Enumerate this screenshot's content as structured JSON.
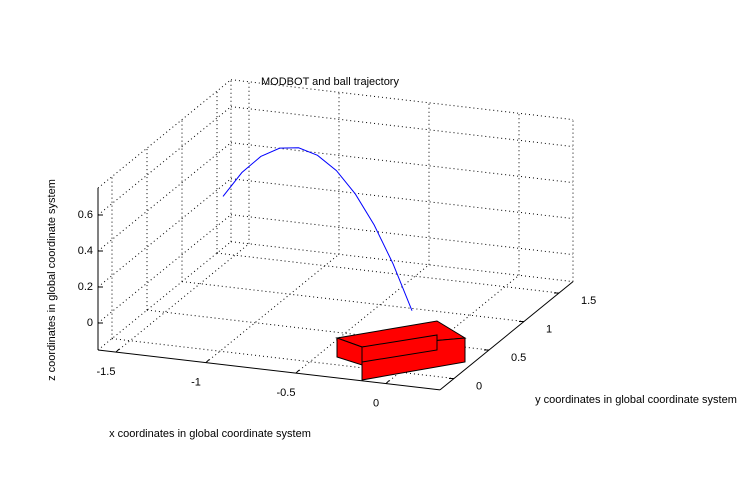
{
  "chart_data": {
    "type": "line3d",
    "title": "MODBOT and ball trajectory",
    "xlabel": "x coordinates in global coordinate system",
    "ylabel": "y coordinates in global coordinate system",
    "zlabel": "z coordinates in global coordinate system",
    "xlim": [
      -1.6,
      0.3
    ],
    "ylim": [
      -0.2,
      1.7
    ],
    "zlim": [
      -0.15,
      0.75
    ],
    "xticks": [
      -1.5,
      -1,
      -0.5,
      0
    ],
    "yticks": [
      0,
      0.5,
      1,
      1.5
    ],
    "zticks": [
      0,
      0.2,
      0.4,
      0.6
    ],
    "grid": true,
    "series": [
      {
        "color": "#0000ff",
        "x": [
          -1.45,
          -1.31,
          -1.17,
          -1.03,
          -0.89,
          -0.75,
          -0.61,
          -0.47,
          -0.33,
          -0.19,
          -0.05
        ],
        "y": [
          1.2,
          1.11,
          1.02,
          0.93,
          0.84,
          0.75,
          0.66,
          0.57,
          0.48,
          0.39,
          0.3
        ],
        "z": [
          0.277,
          0.455,
          0.589,
          0.68,
          0.727,
          0.73,
          0.69,
          0.605,
          0.477,
          0.306,
          0.091
        ]
      }
    ]
  }
}
